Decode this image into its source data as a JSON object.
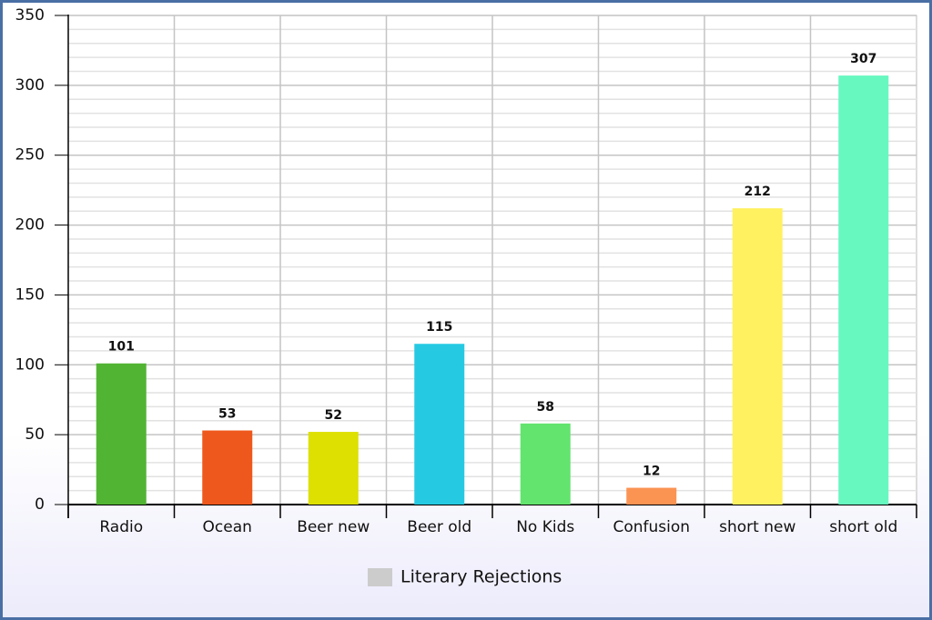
{
  "chart_data": {
    "type": "bar",
    "categories": [
      "Radio",
      "Ocean",
      "Beer new",
      "Beer old",
      "No Kids",
      "Confusion",
      "short new",
      "short old"
    ],
    "series": [
      {
        "name": "Literary Rejections",
        "color": "#cccccc",
        "values": [
          101,
          53,
          52,
          115,
          58,
          12,
          212,
          307
        ],
        "bar_colors": [
          "#52b433",
          "#ee581c",
          "#dde000",
          "#25cae2",
          "#63e46e",
          "#fb9353",
          "#fff15f",
          "#67f8c0"
        ]
      }
    ],
    "ylim": [
      0,
      350
    ],
    "yticks": [
      0,
      50,
      100,
      150,
      200,
      250,
      300,
      350
    ],
    "grid": true,
    "legend": "bottom"
  }
}
